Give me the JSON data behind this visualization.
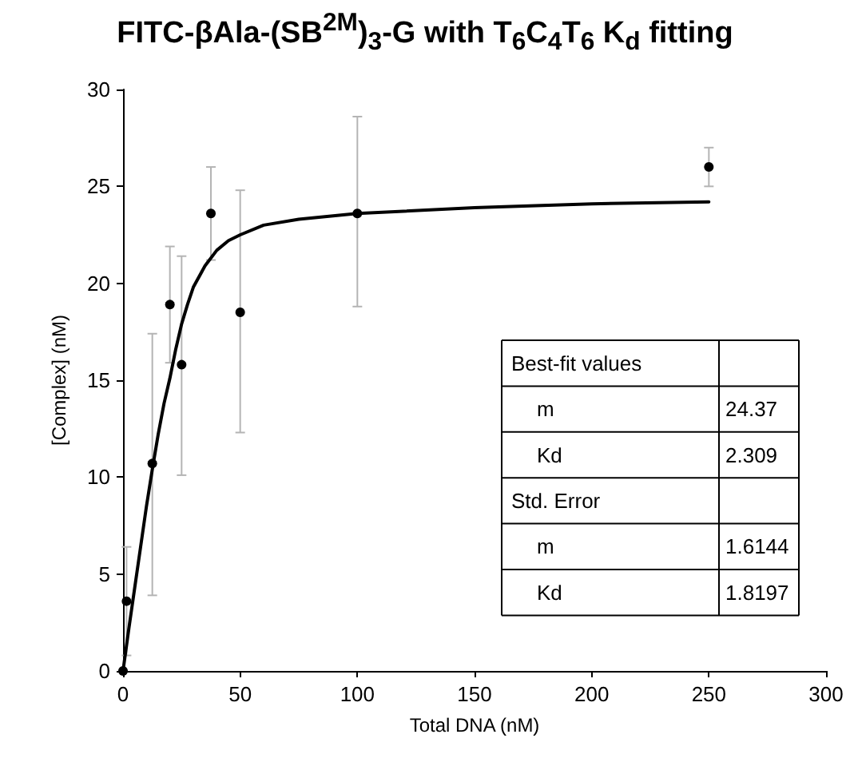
{
  "chart_data": {
    "type": "scatter",
    "title": "FITC-βAla-(SB$^{2M}$)$_{3}$-G with T$_{6}$C$_{4}$T$_{6}$ K$_{d}$ fitting",
    "xlabel": "Total DNA (nM)",
    "ylabel": "[Complex] (nM)",
    "xlim": [
      0,
      300
    ],
    "xticks": [
      0,
      50,
      100,
      150,
      200,
      250,
      300
    ],
    "ylim": [
      0,
      30
    ],
    "yticks": [
      0,
      5,
      10,
      15,
      20,
      25,
      30
    ],
    "grid": false,
    "marker": "circle",
    "series": [
      {
        "color": "#000000",
        "x": [
          0,
          1.5,
          12.5,
          20,
          25,
          37.5,
          50,
          100,
          250
        ],
        "values": [
          0,
          3.6,
          10.7,
          18.9,
          15.8,
          23.6,
          18.5,
          23.6,
          26.0
        ],
        "errors": [
          null,
          [
            0.8,
            6.4
          ],
          [
            3.9,
            17.4
          ],
          [
            15.9,
            21.9
          ],
          [
            10.1,
            21.4
          ],
          [
            21.2,
            26.0
          ],
          [
            12.3,
            24.8
          ],
          [
            18.8,
            28.6
          ],
          [
            25.0,
            27.0
          ]
        ]
      },
      {
        "type": "line",
        "color": "#000000",
        "marker": "none",
        "line_style": "solid",
        "x": [
          0,
          2.5,
          5,
          7.5,
          10,
          12.5,
          15,
          17.5,
          20,
          22.5,
          25,
          27.5,
          30,
          35,
          40,
          45,
          50,
          60,
          75,
          100,
          150,
          200,
          250
        ],
        "values": [
          0,
          2.2,
          4.3,
          6.4,
          8.5,
          10.4,
          12.2,
          13.8,
          15.1,
          16.6,
          17.9,
          18.9,
          19.8,
          20.9,
          21.7,
          22.2,
          22.5,
          23.0,
          23.3,
          23.6,
          23.9,
          24.1,
          24.2
        ]
      }
    ],
    "annotations": [
      "Best-fit values",
      "m",
      "24.37",
      "Kd",
      "2.309",
      "Std. Error",
      "m",
      "1.6144",
      "Kd",
      "1.8197"
    ]
  }
}
